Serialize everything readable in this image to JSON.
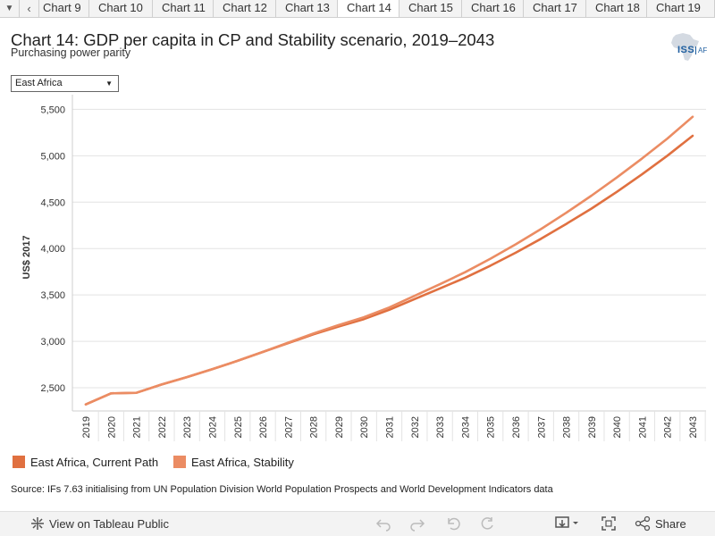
{
  "tabs": {
    "prev_icon": "chevron-left-icon",
    "menu_icon": "chevron-down-icon",
    "items": [
      {
        "label": "Chart 9",
        "active": false
      },
      {
        "label": "Chart 10",
        "active": false
      },
      {
        "label": "Chart 11",
        "active": false
      },
      {
        "label": "Chart 12",
        "active": false
      },
      {
        "label": "Chart 13",
        "active": false
      },
      {
        "label": "Chart 14",
        "active": true
      },
      {
        "label": "Chart 15",
        "active": false
      },
      {
        "label": "Chart 16",
        "active": false
      },
      {
        "label": "Chart 17",
        "active": false
      },
      {
        "label": "Chart 18",
        "active": false
      },
      {
        "label": "Chart 19",
        "active": false
      }
    ]
  },
  "header": {
    "title": "Chart 14: GDP per capita in CP and Stability scenario, 2019–2043",
    "subtitle": "Purchasing power parity",
    "logo_text": "ISS",
    "logo_suffix": "AF"
  },
  "filter": {
    "selected": "East Africa"
  },
  "chart_data": {
    "type": "line",
    "title": "Chart 14: GDP per capita in CP and Stability scenario, 2019–2043",
    "subtitle": "Purchasing power parity",
    "xlabel": "",
    "ylabel": "US$ 2017",
    "ylim": [
      2250,
      5600
    ],
    "yticks": [
      2500,
      3000,
      3500,
      4000,
      4500,
      5000,
      5500
    ],
    "ytick_labels": [
      "2,500",
      "3,000",
      "3,500",
      "4,000",
      "4,500",
      "5,000",
      "5,500"
    ],
    "grid": true,
    "legend": "bottom-left",
    "x": [
      "2019",
      "2020",
      "2021",
      "2022",
      "2023",
      "2024",
      "2025",
      "2026",
      "2027",
      "2028",
      "2029",
      "2030",
      "2031",
      "2032",
      "2033",
      "2034",
      "2035",
      "2036",
      "2037",
      "2038",
      "2039",
      "2040",
      "2041",
      "2042",
      "2043"
    ],
    "series": [
      {
        "name": "East Africa, Current Path",
        "color": "#e07040",
        "values": [
          2320,
          2440,
          2445,
          2535,
          2615,
          2700,
          2790,
          2885,
          2980,
          3075,
          3160,
          3240,
          3340,
          3455,
          3570,
          3685,
          3815,
          3955,
          4105,
          4265,
          4430,
          4610,
          4800,
          5000,
          5215
        ]
      },
      {
        "name": "East Africa, Stability",
        "color": "#eb8c63",
        "values": [
          2320,
          2440,
          2445,
          2535,
          2615,
          2700,
          2790,
          2885,
          2985,
          3085,
          3175,
          3260,
          3365,
          3490,
          3615,
          3745,
          3890,
          4045,
          4210,
          4385,
          4570,
          4765,
          4970,
          5185,
          5420
        ]
      }
    ]
  },
  "source": "Source: IFs 7.63 initialising from UN Population Division World Population Prospects and World Development Indicators data",
  "toolbar": {
    "view_label": "View on Tableau Public",
    "share_label": "Share",
    "icons": [
      "tableau-icon",
      "undo-icon",
      "redo-icon",
      "revert-icon",
      "refresh-icon",
      "download-icon",
      "fullscreen-icon",
      "share-icon"
    ]
  },
  "colors": {
    "current_path": "#e07040",
    "stability": "#eb8c63",
    "logo": "#1f5fa0",
    "grid": "#e3e3e3"
  }
}
